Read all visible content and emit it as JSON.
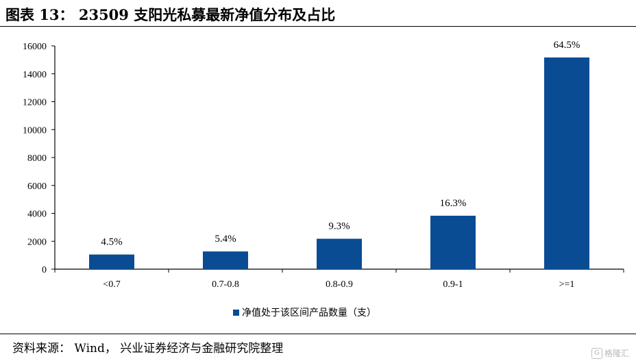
{
  "title": "图表 13： 23509 支阳光私募最新净值分布及占比",
  "source": "资料来源： Wind， 兴业证券经济与金融研究院整理",
  "watermark": "格隆汇",
  "colors": {
    "bar": "#0a4c94",
    "axis": "#000000"
  },
  "chart_data": {
    "type": "bar",
    "categories": [
      "<0.7",
      "0.7-0.8",
      "0.8-0.9",
      "0.9-1",
      ">=1"
    ],
    "series": [
      {
        "name": "净值处于该区间产品数量（支）",
        "values": [
          1050,
          1270,
          2180,
          3830,
          15170
        ]
      }
    ],
    "data_labels": [
      "4.5%",
      "5.4%",
      "9.3%",
      "16.3%",
      "64.5%"
    ],
    "ylim": [
      0,
      16000
    ],
    "yticks": [
      0,
      2000,
      4000,
      6000,
      8000,
      10000,
      12000,
      14000,
      16000
    ],
    "legend_position": "bottom",
    "grid": false
  }
}
